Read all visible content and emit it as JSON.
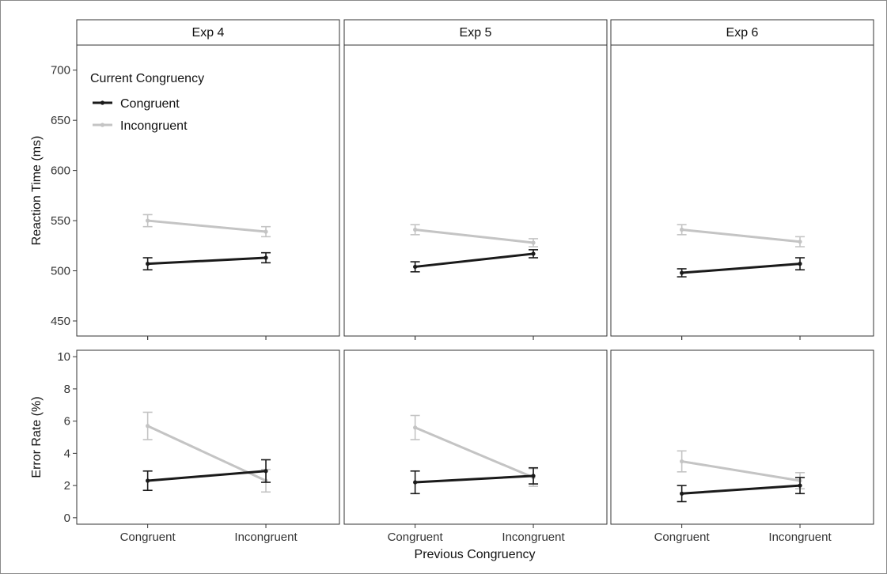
{
  "chart_data": {
    "type": "line",
    "layout": "faceted",
    "panels": [
      "Exp 4",
      "Exp 5",
      "Exp 6"
    ],
    "categories": [
      "Congruent",
      "Incongruent"
    ],
    "xlabel": "Previous Congruency",
    "legend": {
      "title": "Current Congruency",
      "placement": "top-left",
      "entries": [
        {
          "name": "Congruent",
          "color": "#1a1a1a"
        },
        {
          "name": "Incongruent",
          "color": "#c4c4c4"
        }
      ]
    },
    "rows": [
      {
        "ylabel": "Reaction Time (ms)",
        "ylim": [
          435,
          725
        ],
        "yticks": [
          450,
          500,
          550,
          600,
          650,
          700
        ],
        "panels": [
          {
            "panel": "Exp 4",
            "series": [
              {
                "name": "Congruent",
                "values": [
                  507,
                  513
                ],
                "errors": [
                  6,
                  5
                ]
              },
              {
                "name": "Incongruent",
                "values": [
                  550,
                  539
                ],
                "errors": [
                  6,
                  5
                ]
              }
            ]
          },
          {
            "panel": "Exp 5",
            "series": [
              {
                "name": "Congruent",
                "values": [
                  504,
                  517
                ],
                "errors": [
                  5,
                  4
                ]
              },
              {
                "name": "Incongruent",
                "values": [
                  541,
                  528
                ],
                "errors": [
                  5,
                  4
                ]
              }
            ]
          },
          {
            "panel": "Exp 6",
            "series": [
              {
                "name": "Congruent",
                "values": [
                  498,
                  507
                ],
                "errors": [
                  4,
                  6
                ]
              },
              {
                "name": "Incongruent",
                "values": [
                  541,
                  529
                ],
                "errors": [
                  5,
                  5
                ]
              }
            ]
          }
        ]
      },
      {
        "ylabel": "Error Rate (%)",
        "ylim": [
          -0.4,
          10.4
        ],
        "yticks": [
          0,
          2,
          4,
          6,
          8,
          10
        ],
        "panels": [
          {
            "panel": "Exp 4",
            "series": [
              {
                "name": "Congruent",
                "values": [
                  2.3,
                  2.9
                ],
                "errors": [
                  0.6,
                  0.7
                ]
              },
              {
                "name": "Incongruent",
                "values": [
                  5.7,
                  2.3
                ],
                "errors": [
                  0.85,
                  0.7
                ]
              }
            ]
          },
          {
            "panel": "Exp 5",
            "series": [
              {
                "name": "Congruent",
                "values": [
                  2.2,
                  2.6
                ],
                "errors": [
                  0.7,
                  0.5
                ]
              },
              {
                "name": "Incongruent",
                "values": [
                  5.6,
                  2.5
                ],
                "errors": [
                  0.75,
                  0.55
                ]
              }
            ]
          },
          {
            "panel": "Exp 6",
            "series": [
              {
                "name": "Congruent",
                "values": [
                  1.5,
                  2.0
                ],
                "errors": [
                  0.5,
                  0.5
                ]
              },
              {
                "name": "Incongruent",
                "values": [
                  3.5,
                  2.3
                ],
                "errors": [
                  0.65,
                  0.5
                ]
              }
            ]
          }
        ]
      }
    ],
    "grid": false
  }
}
